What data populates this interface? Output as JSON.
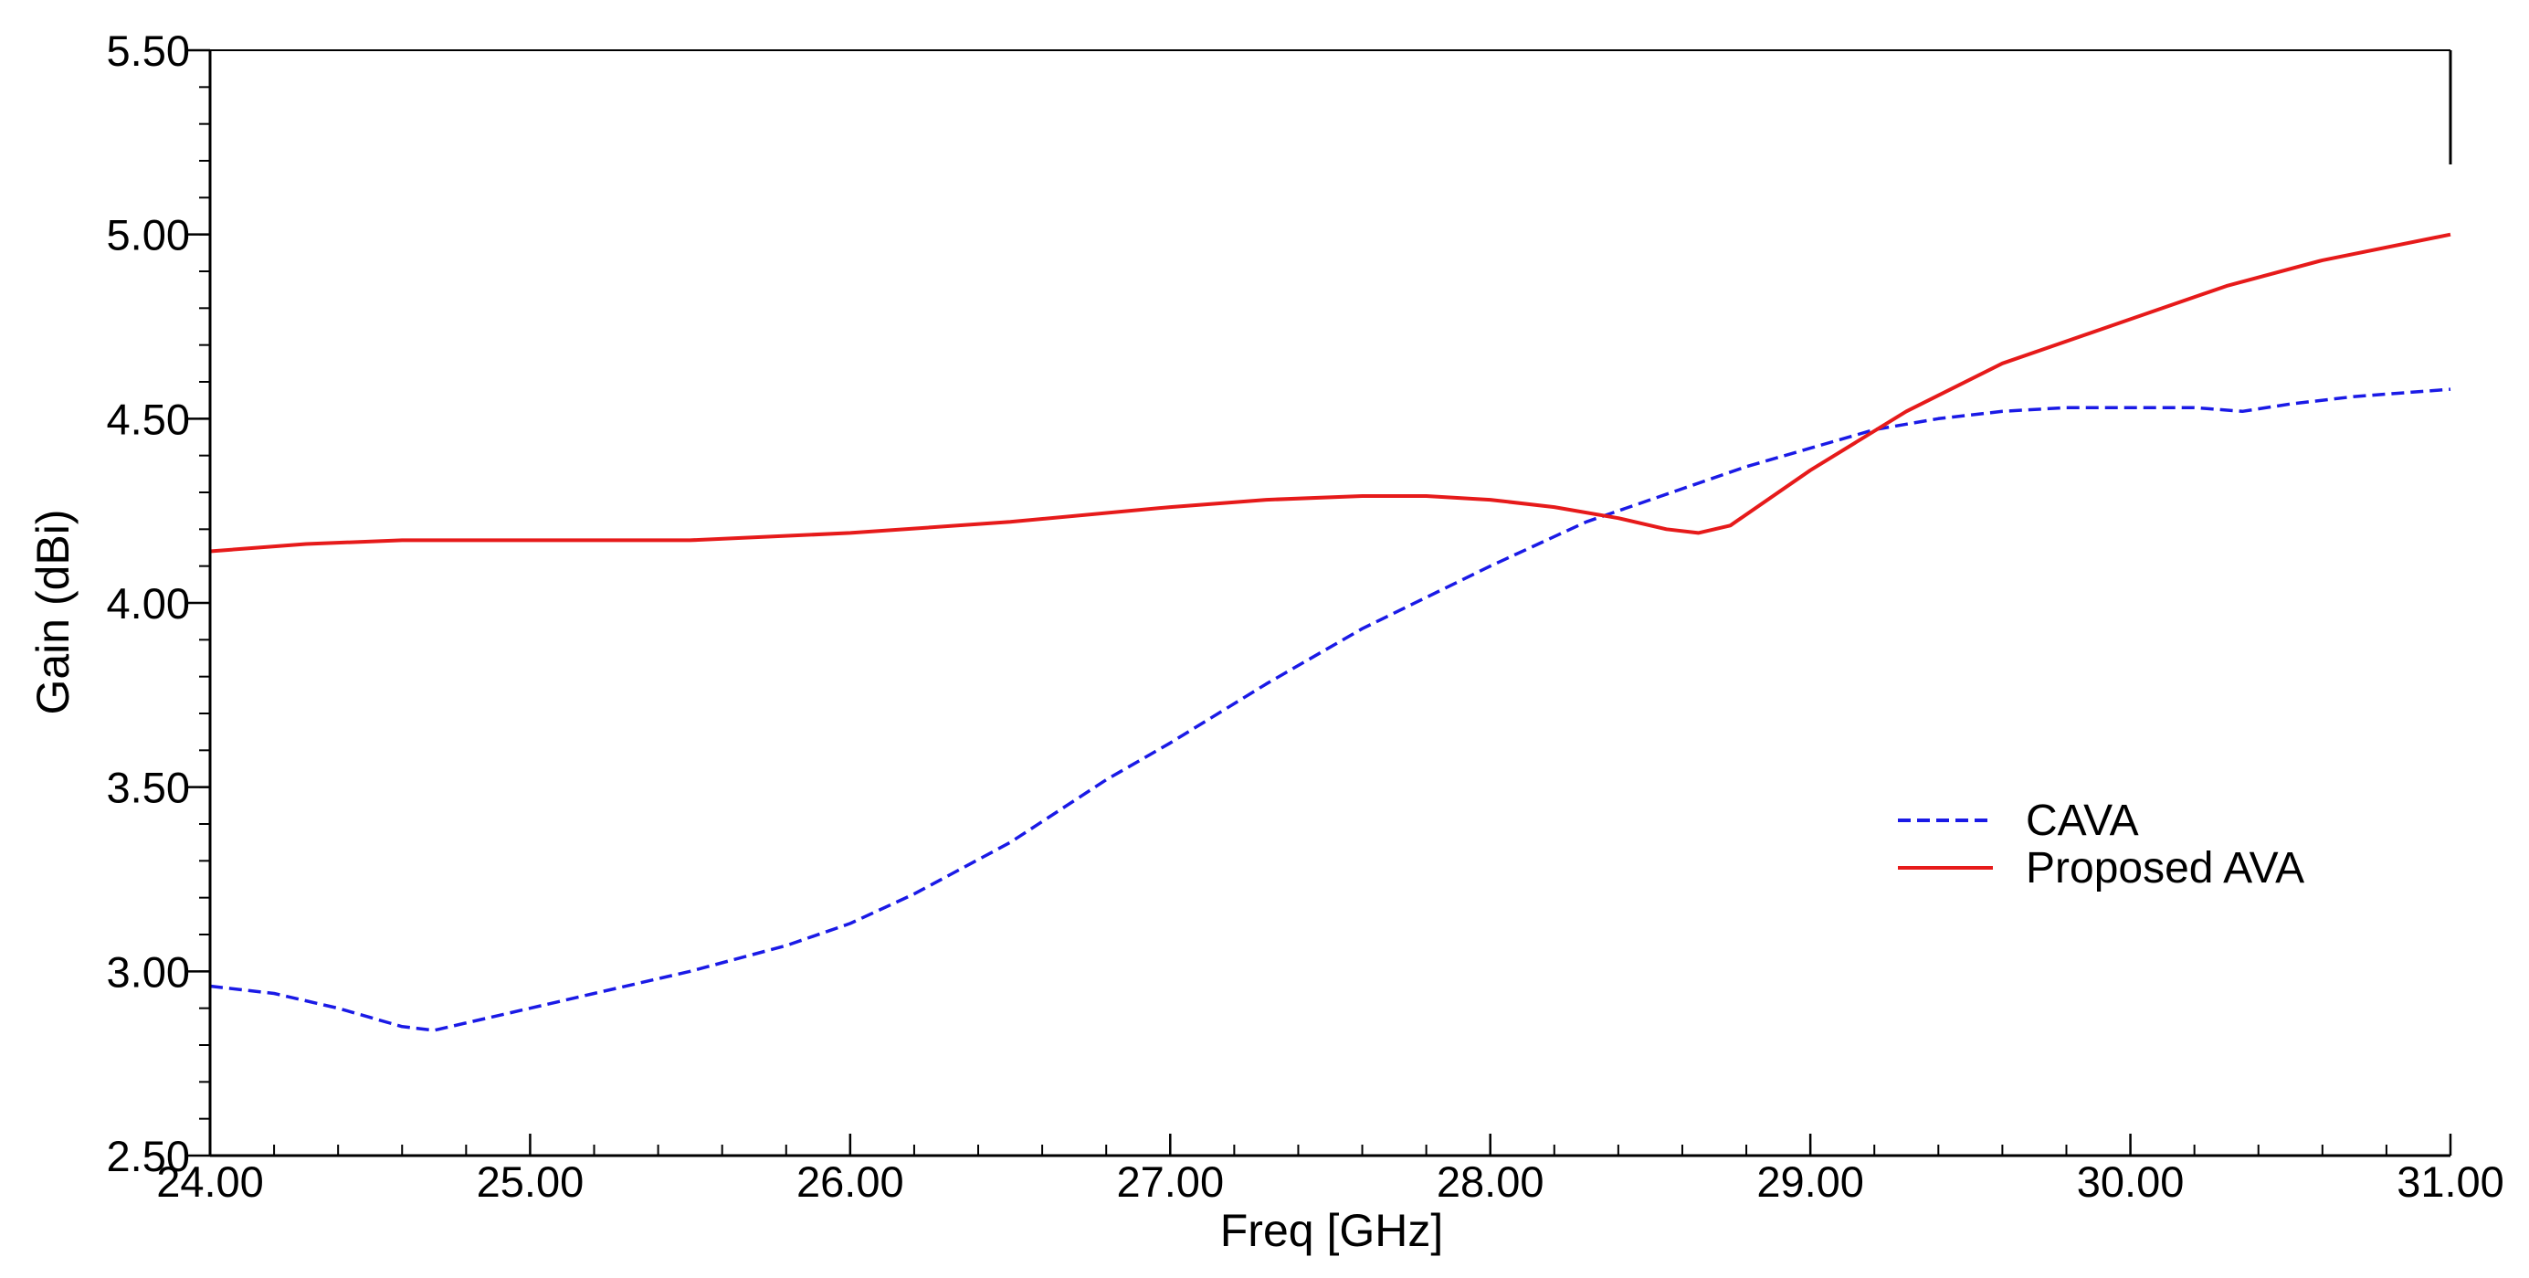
{
  "chart_data": {
    "type": "line",
    "title": "",
    "xlabel": "Freq [GHz]",
    "ylabel": "Gain (dBi)",
    "xlim": [
      24.0,
      31.0
    ],
    "ylim": [
      2.5,
      5.5
    ],
    "x_ticks": [
      "24.00",
      "25.00",
      "26.00",
      "27.00",
      "28.00",
      "29.00",
      "30.00",
      "31.00"
    ],
    "y_ticks": [
      "2.50",
      "3.00",
      "3.50",
      "4.00",
      "4.50",
      "5.00",
      "5.50"
    ],
    "grid": false,
    "legend_position": "right",
    "series": [
      {
        "name": "CAVA",
        "color": "#1a1ae6",
        "style": "dashed",
        "x": [
          24.0,
          24.2,
          24.4,
          24.6,
          24.7,
          24.8,
          25.0,
          25.2,
          25.5,
          25.8,
          26.0,
          26.2,
          26.5,
          26.8,
          27.0,
          27.3,
          27.6,
          28.0,
          28.3,
          28.6,
          28.8,
          29.0,
          29.2,
          29.4,
          29.6,
          29.8,
          30.0,
          30.2,
          30.35,
          30.5,
          30.7,
          31.0
        ],
        "y": [
          2.96,
          2.94,
          2.9,
          2.85,
          2.84,
          2.86,
          2.9,
          2.94,
          3.0,
          3.07,
          3.13,
          3.21,
          3.35,
          3.52,
          3.62,
          3.78,
          3.93,
          4.1,
          4.22,
          4.31,
          4.37,
          4.42,
          4.47,
          4.5,
          4.52,
          4.53,
          4.53,
          4.53,
          4.52,
          4.54,
          4.56,
          4.58
        ]
      },
      {
        "name": "Proposed AVA",
        "color": "#e61a1a",
        "style": "solid",
        "x": [
          24.0,
          24.3,
          24.6,
          25.0,
          25.5,
          26.0,
          26.5,
          27.0,
          27.3,
          27.6,
          27.8,
          28.0,
          28.2,
          28.4,
          28.55,
          28.65,
          28.75,
          29.0,
          29.3,
          29.6,
          30.0,
          30.3,
          30.6,
          31.0
        ],
        "y": [
          4.14,
          4.16,
          4.17,
          4.17,
          4.17,
          4.19,
          4.22,
          4.26,
          4.28,
          4.29,
          4.29,
          4.28,
          4.26,
          4.23,
          4.2,
          4.19,
          4.21,
          4.36,
          4.52,
          4.65,
          4.77,
          4.86,
          4.93,
          5.0
        ]
      }
    ]
  }
}
